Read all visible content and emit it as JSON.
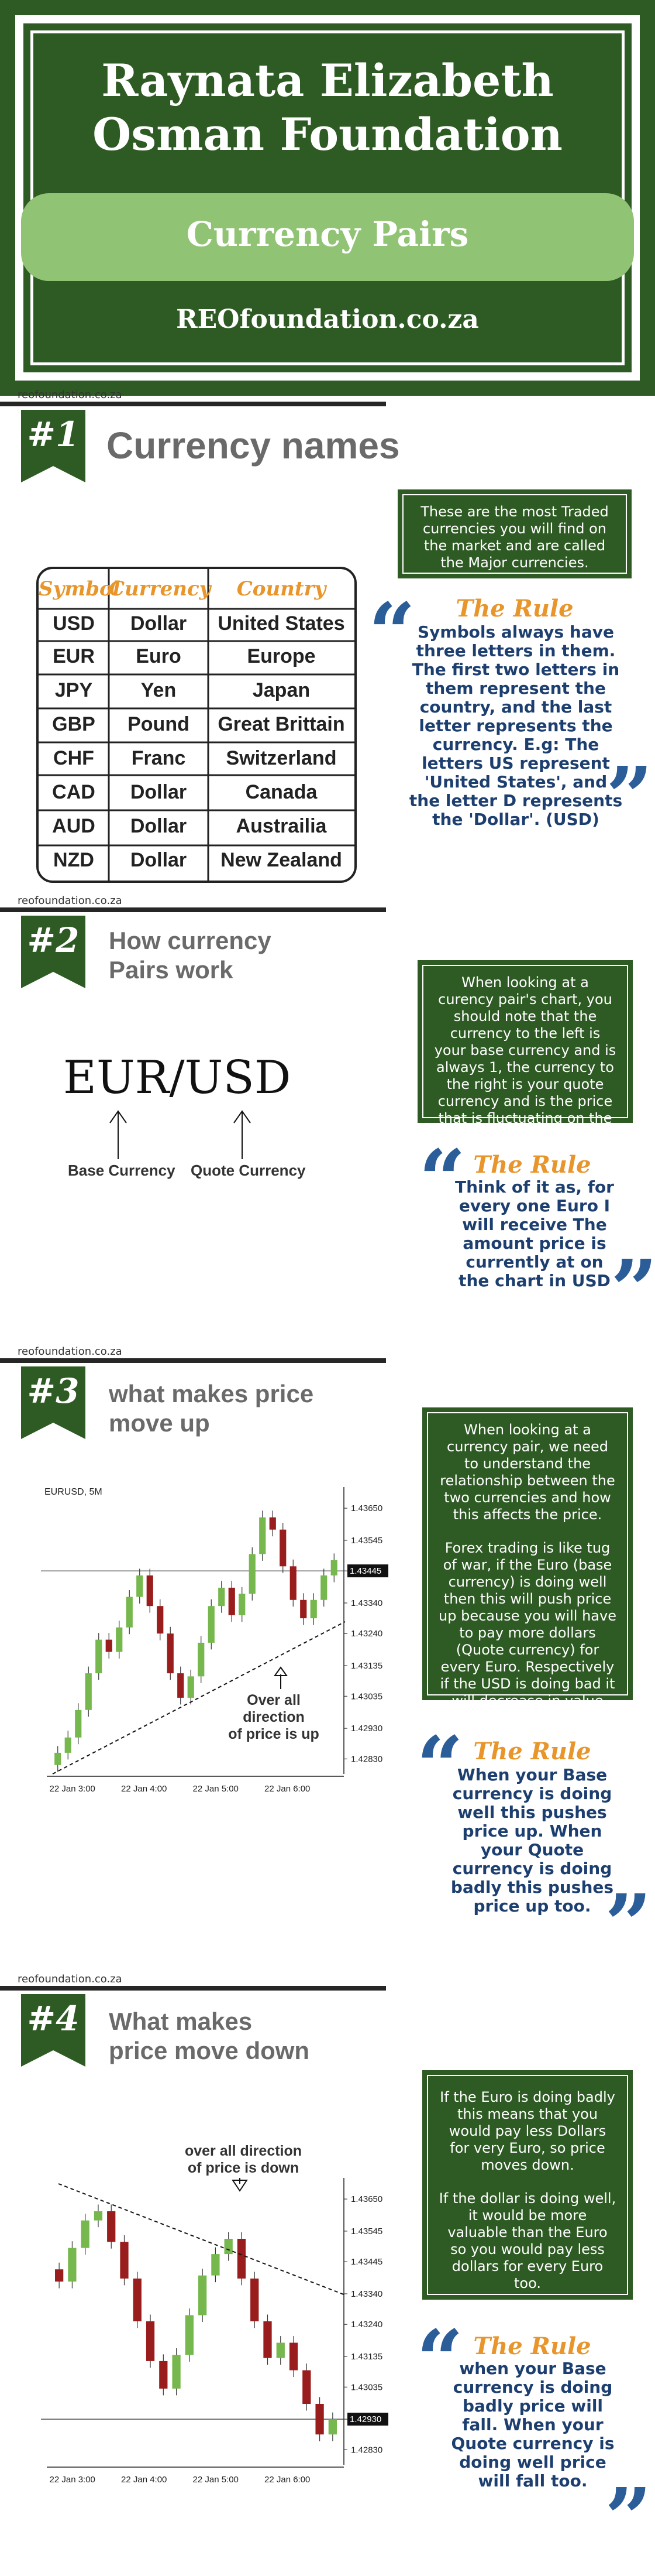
{
  "header": {
    "title_line1": "Raynata Elizabeth",
    "title_line2": "Osman Foundation",
    "subtitle": "Currency Pairs",
    "url": "REOfoundation.co.za"
  },
  "colors": {
    "green": "#2e5a23",
    "light_green": "#90c373",
    "orange": "#e8952b",
    "navy": "#1d3f70",
    "quote_blue": "#2b5d99",
    "bull": "#76b84d",
    "bear": "#9a1d1d"
  },
  "site_tag": "reofoundation.co.za",
  "quote_open": "“",
  "quote_close": "”",
  "s1": {
    "num": "#1",
    "title": "Currency names",
    "info": "These are the most Traded currencies you will find on the market and are called the Major currencies.",
    "rule_title": "The Rule",
    "rule_text": "Symbols always have three letters in them. The first two letters in them represent the country, and the last letter represents the currency. E.g: The letters US represent 'United States', and the letter D represents the 'Dollar'. (USD)",
    "table": {
      "headers": [
        "Symbol",
        "Currency",
        "Country"
      ],
      "rows": [
        [
          "USD",
          "Dollar",
          "United States"
        ],
        [
          "EUR",
          "Euro",
          "Europe"
        ],
        [
          "JPY",
          "Yen",
          "Japan"
        ],
        [
          "GBP",
          "Pound",
          "Great Brittain"
        ],
        [
          "CHF",
          "Franc",
          "Switzerland"
        ],
        [
          "CAD",
          "Dollar",
          "Canada"
        ],
        [
          "AUD",
          "Dollar",
          "Austrailia"
        ],
        [
          "NZD",
          "Dollar",
          "New Zealand"
        ]
      ]
    }
  },
  "s2": {
    "num": "#2",
    "title_line1": "How currency",
    "title_line2": "Pairs work",
    "pair": "EUR/USD",
    "base_label": "Base Currency",
    "quote_label": "Quote Currency",
    "info": "When looking at a curency pair's chart, you should note that the currency to the left is your base currency and is always 1, the currency to the right is your quote currency and is the price that is fluctuating on the chart",
    "rule_title": "The Rule",
    "rule_text": "Think of it as, for every one Euro I will receive The amount price is currently at on the chart in USD"
  },
  "s3": {
    "num": "#3",
    "title_line1": "what makes price",
    "title_line2": "move up",
    "chart_symbol": "EURUSD, 5M",
    "annotation_line1": "Over all direction",
    "annotation_line2": "of price is up",
    "price_labels": [
      "1.43650",
      "1.43545",
      "1.43445",
      "1.43340",
      "1.43240",
      "1.43135",
      "1.43035",
      "1.42930",
      "1.42830"
    ],
    "current_price": "1.43445",
    "time_labels": [
      "22 Jan 3:00",
      "22 Jan 4:00",
      "22 Jan 5:00",
      "22 Jan 6:00"
    ],
    "info_p1": "When looking at a currency pair, we need to understand the relationship between the two currencies and how this affects the price.",
    "info_p2": "Forex trading is like tug of war, if the Euro (base currency) is doing well then this will push price up because you will have to pay more dollars (Quote currency) for every Euro. Respectively if the USD is doing bad it will decrease in value compared to the Euro so that would push price up too.",
    "rule_title": "The Rule",
    "rule_text": "When your Base currency is doing well this pushes price up. When your Quote currency is doing badly this pushes price up too."
  },
  "s4": {
    "num": "#4",
    "title_line1": "What makes",
    "title_line2": "price move down",
    "annotation_line1": "over all direction",
    "annotation_line2": "of price is down",
    "price_labels": [
      "1.43650",
      "1.43545",
      "1.43445",
      "1.43340",
      "1.43240",
      "1.43135",
      "1.43035",
      "1.42930",
      "1.42830"
    ],
    "current_price": "1.42930",
    "time_labels": [
      "22 Jan 3:00",
      "22 Jan 4:00",
      "22 Jan 5:00",
      "22 Jan 6:00"
    ],
    "info_p1": "If the Euro is doing badly this means that you would pay less Dollars for very Euro, so price moves down.",
    "info_p2": "If the dollar is doing well, it would be more valuable than the Euro so you would pay less dollars for every Euro too.",
    "rule_title": "The Rule",
    "rule_text": "when your Base currency is doing badly price will fall. When your Quote currency is doing well price will fall too."
  },
  "chart_data": [
    {
      "type": "candlestick",
      "title": "EURUSD, 5M",
      "y_ticks": [
        1.4365,
        1.43545,
        1.43445,
        1.4334,
        1.4324,
        1.43135,
        1.43035,
        1.4293,
        1.4283
      ],
      "x_ticks": [
        "22 Jan 3:00",
        "22 Jan 4:00",
        "22 Jan 5:00",
        "22 Jan 6:00"
      ],
      "current_price": 1.43445,
      "closes": [
        1.4285,
        1.429,
        1.4299,
        1.4311,
        1.4322,
        1.4318,
        1.4326,
        1.4336,
        1.4343,
        1.4333,
        1.4324,
        1.4311,
        1.4303,
        1.431,
        1.4321,
        1.4333,
        1.4339,
        1.433,
        1.4337,
        1.435,
        1.4362,
        1.4358,
        1.4346,
        1.4335,
        1.4329,
        1.4335,
        1.4343,
        1.4348
      ]
    },
    {
      "type": "candlestick",
      "y_ticks": [
        1.4365,
        1.43545,
        1.43445,
        1.4334,
        1.4324,
        1.43135,
        1.43035,
        1.4293,
        1.4283
      ],
      "x_ticks": [
        "22 Jan 3:00",
        "22 Jan 4:00",
        "22 Jan 5:00",
        "22 Jan 6:00"
      ],
      "current_price": 1.4293,
      "closes": [
        1.4338,
        1.4349,
        1.4358,
        1.4361,
        1.4351,
        1.4339,
        1.4325,
        1.4312,
        1.4303,
        1.4314,
        1.4327,
        1.434,
        1.4347,
        1.4352,
        1.4339,
        1.4325,
        1.4313,
        1.4318,
        1.4309,
        1.4298,
        1.4288,
        1.4293
      ]
    }
  ]
}
